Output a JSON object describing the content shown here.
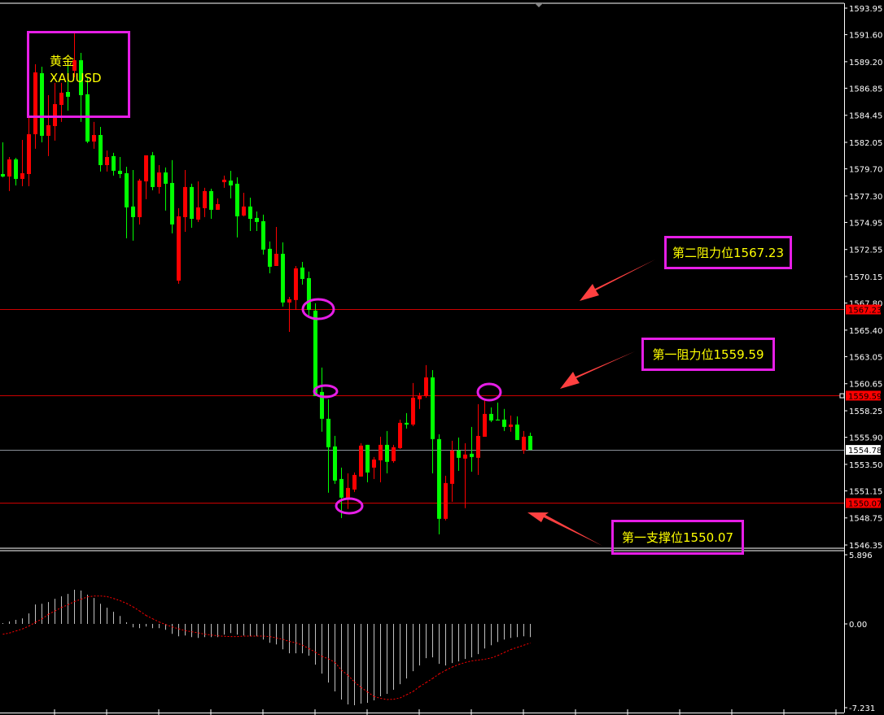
{
  "symbol": {
    "name_cn": "黄金",
    "code": "XAUUSD"
  },
  "annotations": {
    "resistance2": {
      "label": "第二阻力位1567.23",
      "price": 1567.23
    },
    "resistance1": {
      "label": "第一阻力位1559.59",
      "price": 1559.59
    },
    "support1": {
      "label": "第一支撑位1550.07",
      "price": 1550.07
    }
  },
  "colors": {
    "up": "#ff0000",
    "down": "#00ff00",
    "level_line": "#cc0000",
    "bid_line": "#8a9099",
    "annotation_border": "#e61ee6",
    "annotation_text": "#ffff00",
    "arrow": "#ff4040",
    "histogram": "#c0c0c0",
    "signal": "#ff0000"
  },
  "chart_data": [
    {
      "type": "candlestick",
      "ylim": [
        1546.35,
        1593.95
      ],
      "y_ticks": [
        "1593.95",
        "1591.60",
        "1589.20",
        "1586.85",
        "1584.45",
        "1582.05",
        "1579.70",
        "1577.30",
        "1574.95",
        "1572.55",
        "1570.15",
        "1567.80",
        "1565.40",
        "1563.05",
        "1560.65",
        "1558.25",
        "1555.90",
        "1553.50",
        "1551.15",
        "1548.75",
        "1546.35"
      ],
      "price_tags": [
        {
          "value": "1567.23",
          "style": "level"
        },
        {
          "value": "1559.59",
          "style": "level"
        },
        {
          "value": "1554.78",
          "style": "bid"
        },
        {
          "value": "1550.07",
          "style": "level"
        }
      ],
      "horizontal_lines": [
        {
          "price": 1567.23,
          "style": "level"
        },
        {
          "price": 1559.59,
          "style": "level"
        },
        {
          "price": 1554.78,
          "style": "bid"
        },
        {
          "price": 1550.07,
          "style": "level"
        }
      ],
      "ohlc": [
        [
          1579.24,
          1582.05,
          1578.95,
          1579.02
        ],
        [
          1579.02,
          1580.75,
          1577.73,
          1580.54
        ],
        [
          1580.54,
          1580.68,
          1578.23,
          1578.81
        ],
        [
          1578.81,
          1582.27,
          1578.16,
          1579.31
        ],
        [
          1579.24,
          1584.58,
          1578.16,
          1582.77
        ],
        [
          1582.77,
          1588.97,
          1581.48,
          1588.25
        ],
        [
          1588.18,
          1588.76,
          1582.05,
          1582.63
        ],
        [
          1582.63,
          1586.23,
          1580.83,
          1583.57
        ],
        [
          1583.49,
          1587.32,
          1582.2,
          1585.44
        ],
        [
          1585.37,
          1587.32,
          1583.86,
          1586.45
        ],
        [
          1586.52,
          1589.12,
          1584.86,
          1586.09
        ],
        [
          1588.4,
          1591.79,
          1587.82,
          1589.33
        ],
        [
          1589.33,
          1589.98,
          1583.86,
          1586.23
        ],
        [
          1586.31,
          1587.82,
          1581.98,
          1582.12
        ],
        [
          1582.12,
          1583.86,
          1581.48,
          1582.7
        ],
        [
          1582.7,
          1583.42,
          1579.46,
          1580.03
        ],
        [
          1580.03,
          1581.33,
          1579.46,
          1580.75
        ],
        [
          1580.83,
          1581.12,
          1579.1,
          1579.53
        ],
        [
          1579.53,
          1580.75,
          1578.88,
          1579.24
        ],
        [
          1579.31,
          1579.89,
          1573.54,
          1576.28
        ],
        [
          1576.36,
          1579.6,
          1573.33,
          1575.42
        ],
        [
          1575.42,
          1578.81,
          1574.77,
          1578.66
        ],
        [
          1578.59,
          1580.9,
          1577.01,
          1580.9
        ],
        [
          1580.9,
          1581.19,
          1577.8,
          1578.09
        ],
        [
          1578.09,
          1580.03,
          1577.51,
          1579.38
        ],
        [
          1579.38,
          1579.82,
          1576.0,
          1578.38
        ],
        [
          1578.45,
          1580.47,
          1573.98,
          1574.77
        ],
        [
          1569.79,
          1576.21,
          1569.51,
          1575.49
        ],
        [
          1575.42,
          1579.6,
          1574.12,
          1578.09
        ],
        [
          1578.09,
          1578.38,
          1574.48,
          1575.27
        ],
        [
          1575.2,
          1578.59,
          1574.99,
          1576.28
        ],
        [
          1576.21,
          1578.02,
          1575.42,
          1577.73
        ],
        [
          1577.73,
          1577.94,
          1575.27,
          1576.07
        ],
        [
          1576.07,
          1577.08,
          1576.07,
          1576.57
        ],
        [
          1578.52,
          1579.1,
          1578.02,
          1578.74
        ],
        [
          1578.66,
          1579.53,
          1577.08,
          1578.23
        ],
        [
          1578.38,
          1578.95,
          1573.62,
          1575.49
        ],
        [
          1575.56,
          1577.58,
          1575.49,
          1576.36
        ],
        [
          1576.36,
          1577.15,
          1574.19,
          1575.27
        ],
        [
          1575.35,
          1575.92,
          1574.19,
          1574.99
        ],
        [
          1575.06,
          1575.64,
          1572.1,
          1572.54
        ],
        [
          1572.61,
          1573.26,
          1570.44,
          1571.02
        ],
        [
          1571.09,
          1574.55,
          1571.09,
          1572.17
        ],
        [
          1572.17,
          1573.18,
          1567.49,
          1567.85
        ],
        [
          1567.85,
          1568.35,
          1565.25,
          1568.14
        ],
        [
          1568.07,
          1571.09,
          1567.2,
          1570.88
        ],
        [
          1570.95,
          1571.45,
          1569.44,
          1569.94
        ],
        [
          1570.01,
          1570.59,
          1566.62,
          1567.2
        ],
        [
          1567.13,
          1567.78,
          1559.56,
          1559.56
        ],
        [
          1559.92,
          1562.08,
          1556.39,
          1557.54
        ],
        [
          1557.54,
          1559.27,
          1550.98,
          1555.02
        ],
        [
          1555.09,
          1556.02,
          1551.77,
          1552.06
        ],
        [
          1552.2,
          1553.21,
          1548.74,
          1550.55
        ],
        [
          1550.55,
          1552.71,
          1549.54,
          1551.41
        ],
        [
          1551.27,
          1552.78,
          1551.05,
          1552.56
        ],
        [
          1552.42,
          1555.37,
          1552.42,
          1555.16
        ],
        [
          1555.23,
          1555.23,
          1551.91,
          1552.78
        ],
        [
          1553.21,
          1554.15,
          1552.2,
          1553.93
        ],
        [
          1553.86,
          1555.95,
          1551.91,
          1555.23
        ],
        [
          1555.23,
          1556.46,
          1552.71,
          1553.72
        ],
        [
          1553.79,
          1555.23,
          1553.64,
          1555.02
        ],
        [
          1554.94,
          1557.47,
          1554.87,
          1557.18
        ],
        [
          1557.18,
          1558.04,
          1556.67,
          1557.03
        ],
        [
          1557.03,
          1560.71,
          1556.89,
          1559.41
        ],
        [
          1559.27,
          1559.85,
          1558.41,
          1559.56
        ],
        [
          1559.56,
          1562.3,
          1559.41,
          1561.21
        ],
        [
          1561.21,
          1561.86,
          1552.71,
          1555.74
        ],
        [
          1555.74,
          1556.17,
          1547.3,
          1548.67
        ],
        [
          1548.67,
          1552.49,
          1548.53,
          1551.84
        ],
        [
          1551.77,
          1555.59,
          1550.18,
          1554.73
        ],
        [
          1554.73,
          1555.88,
          1552.92,
          1554.08
        ],
        [
          1554.01,
          1555.37,
          1549.61,
          1554.37
        ],
        [
          1554.44,
          1556.82,
          1552.85,
          1554.15
        ],
        [
          1554.08,
          1558.84,
          1552.56,
          1556.02
        ],
        [
          1555.95,
          1559.27,
          1555.95,
          1557.97
        ],
        [
          1557.97,
          1558.55,
          1557.25,
          1557.39
        ],
        [
          1557.47,
          1558.98,
          1557.39,
          1557.39
        ],
        [
          1557.47,
          1558.41,
          1556.46,
          1556.82
        ],
        [
          1556.82,
          1557.83,
          1556.39,
          1557.03
        ],
        [
          1557.03,
          1557.75,
          1555.66,
          1555.66
        ],
        [
          1554.73,
          1556.46,
          1554.44,
          1555.95
        ],
        [
          1556.02,
          1556.31,
          1554.78,
          1554.78
        ]
      ]
    },
    {
      "type": "bar",
      "ylim": [
        -7.231,
        5.896
      ],
      "y_ticks": [
        "5.896",
        "0.00",
        "-7.231"
      ],
      "histogram": [
        0.07,
        0.21,
        0.35,
        0.47,
        0.89,
        1.66,
        1.72,
        1.86,
        2.14,
        2.35,
        2.56,
        2.91,
        2.84,
        2.49,
        2.21,
        1.72,
        1.38,
        1.03,
        0.68,
        0.14,
        -0.3,
        -0.37,
        -0.23,
        -0.37,
        -0.37,
        -0.51,
        -0.86,
        -1.07,
        -1.0,
        -1.14,
        -1.21,
        -1.14,
        -1.14,
        -1.14,
        -0.93,
        -0.79,
        -0.93,
        -1.0,
        -1.07,
        -1.07,
        -1.35,
        -1.63,
        -1.77,
        -2.19,
        -2.54,
        -2.54,
        -2.54,
        -2.75,
        -3.52,
        -4.29,
        -5.06,
        -5.83,
        -6.53,
        -6.95,
        -7.02,
        -6.88,
        -6.81,
        -6.6,
        -6.25,
        -6.04,
        -5.69,
        -5.2,
        -4.71,
        -4.08,
        -3.59,
        -2.96,
        -2.89,
        -3.45,
        -3.59,
        -3.38,
        -3.24,
        -3.03,
        -2.89,
        -2.61,
        -2.12,
        -1.84,
        -1.56,
        -1.35,
        -1.21,
        -1.14,
        -1.07,
        -1.14
      ],
      "signal": [
        -0.89,
        -0.79,
        -0.61,
        -0.44,
        -0.19,
        0.14,
        0.42,
        0.82,
        1.1,
        1.4,
        1.63,
        1.91,
        2.1,
        2.31,
        2.38,
        2.38,
        2.33,
        2.17,
        1.98,
        1.75,
        1.45,
        1.1,
        0.72,
        0.44,
        0.16,
        -0.05,
        -0.26,
        -0.42,
        -0.58,
        -0.68,
        -0.77,
        -0.89,
        -0.96,
        -1.03,
        -1.07,
        -1.1,
        -1.1,
        -1.05,
        -1.05,
        -1.05,
        -1.05,
        -1.1,
        -1.21,
        -1.33,
        -1.52,
        -1.63,
        -1.84,
        -2.12,
        -2.45,
        -2.8,
        -3.01,
        -3.33,
        -3.99,
        -4.43,
        -5.01,
        -5.48,
        -5.87,
        -6.27,
        -6.43,
        -6.53,
        -6.5,
        -6.39,
        -6.11,
        -5.83,
        -5.41,
        -5.06,
        -4.71,
        -4.31,
        -4.01,
        -3.73,
        -3.5,
        -3.33,
        -3.19,
        -3.12,
        -3.05,
        -2.94,
        -2.73,
        -2.47,
        -2.21,
        -2.03,
        -1.84,
        -1.65
      ]
    }
  ]
}
